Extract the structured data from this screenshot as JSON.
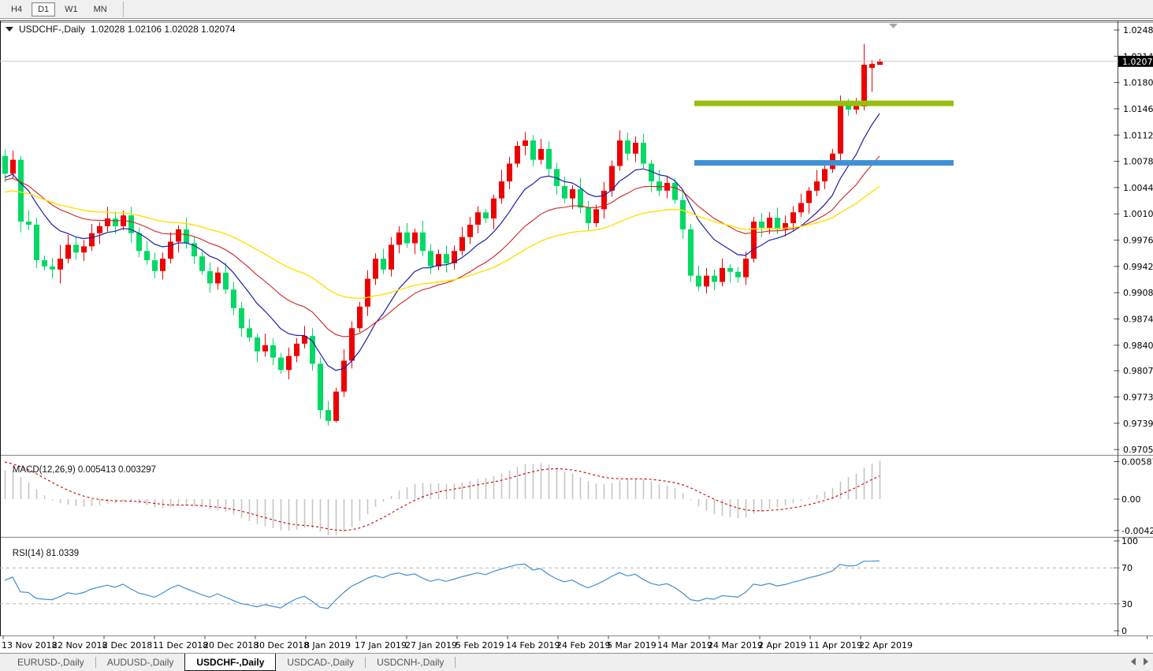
{
  "toolbar": {
    "buttons": [
      {
        "label": "H4",
        "active": false
      },
      {
        "label": "D1",
        "active": true
      },
      {
        "label": "W1",
        "active": false
      },
      {
        "label": "MN",
        "active": false
      }
    ]
  },
  "chart": {
    "title": {
      "symbol": "USDCHF-,Daily",
      "ohlc": "1.02028 1.02106 1.02028 1.02074"
    },
    "current_price": "1.02074",
    "macd": {
      "label": "MACD(12,26,9)",
      "values": "0.005413 0.003297"
    },
    "rsi": {
      "label": "RSI(14)",
      "value": "81.0339"
    }
  },
  "chart_data": {
    "type": "candlestick",
    "symbol": "USDCHF",
    "timeframe": "Daily",
    "price_axis_labels": [
      "1.02480",
      "1.02140",
      "1.01800",
      "1.01460",
      "1.01120",
      "1.00780",
      "1.00440",
      "1.00100",
      "0.99760",
      "0.99420",
      "0.99080",
      "0.98740",
      "0.98400",
      "0.98070",
      "0.97730",
      "0.97390",
      "0.97050"
    ],
    "date_labels": [
      "13 Nov 2018",
      "22 Nov 2018",
      "2 Dec 2018",
      "11 Dec 2018",
      "20 Dec 2018",
      "30 Dec 2018",
      "8 Jan 2019",
      "17 Jan 2019",
      "27 Jan 2019",
      "5 Feb 2019",
      "14 Feb 2019",
      "24 Feb 2019",
      "5 Mar 2019",
      "14 Mar 2019",
      "24 Mar 2019",
      "2 Apr 2019",
      "11 Apr 2019",
      "22 Apr 2019"
    ],
    "candles_ohlc": [
      [
        1.0085,
        1.0093,
        1.0051,
        1.0062
      ],
      [
        1.0062,
        1.0092,
        1.0056,
        1.008
      ],
      [
        1.008,
        1.0085,
        0.9986,
        1.0
      ],
      [
        1.0,
        1.0015,
        0.9989,
        0.9996
      ],
      [
        0.9996,
        1.0005,
        0.994,
        0.995
      ],
      [
        0.995,
        0.9956,
        0.9937,
        0.9942
      ],
      [
        0.9942,
        0.9953,
        0.9926,
        0.9938
      ],
      [
        0.9938,
        0.997,
        0.992,
        0.9952
      ],
      [
        0.9952,
        0.9983,
        0.9946,
        0.997
      ],
      [
        0.997,
        0.998,
        0.9951,
        0.996
      ],
      [
        0.996,
        0.9976,
        0.9949,
        0.9968
      ],
      [
        0.9968,
        0.9997,
        0.9962,
        0.9985
      ],
      [
        0.9985,
        0.9999,
        0.9971,
        0.9994
      ],
      [
        0.9994,
        1.0019,
        0.9987,
        1.0004
      ],
      [
        1.0004,
        1.0013,
        0.9984,
        0.9994
      ],
      [
        0.9994,
        1.0014,
        0.9989,
        1.0008
      ],
      [
        1.0008,
        1.0019,
        0.9973,
        0.9985
      ],
      [
        0.9985,
        0.9992,
        0.9954,
        0.9962
      ],
      [
        0.9962,
        0.9975,
        0.9944,
        0.995
      ],
      [
        0.995,
        0.996,
        0.9927,
        0.9936
      ],
      [
        0.9936,
        0.996,
        0.9925,
        0.9952
      ],
      [
        0.9952,
        0.9986,
        0.9946,
        0.9974
      ],
      [
        0.9974,
        0.9995,
        0.996,
        0.999
      ],
      [
        0.999,
        1.0005,
        0.9965,
        0.9972
      ],
      [
        0.9972,
        0.9981,
        0.9945,
        0.9955
      ],
      [
        0.9955,
        0.9961,
        0.9931,
        0.9936
      ],
      [
        0.9936,
        0.9947,
        0.9908,
        0.992
      ],
      [
        0.992,
        0.9941,
        0.9912,
        0.9934
      ],
      [
        0.9934,
        0.9947,
        0.9906,
        0.9912
      ],
      [
        0.9912,
        0.9922,
        0.9879,
        0.9888
      ],
      [
        0.9888,
        0.9896,
        0.9851,
        0.9862
      ],
      [
        0.9862,
        0.9874,
        0.9844,
        0.985
      ],
      [
        0.985,
        0.9855,
        0.9818,
        0.9832
      ],
      [
        0.9832,
        0.9855,
        0.9825,
        0.984
      ],
      [
        0.984,
        0.9849,
        0.9814,
        0.9824
      ],
      [
        0.9824,
        0.983,
        0.9803,
        0.9808
      ],
      [
        0.9808,
        0.9837,
        0.9796,
        0.9826
      ],
      [
        0.9826,
        0.9849,
        0.9818,
        0.9842
      ],
      [
        0.9842,
        0.9865,
        0.9836,
        0.9852
      ],
      [
        0.9852,
        0.9862,
        0.9807,
        0.9816
      ],
      [
        0.9816,
        0.9824,
        0.9745,
        0.9756
      ],
      [
        0.9756,
        0.9768,
        0.9736,
        0.9742
      ],
      [
        0.9742,
        0.9785,
        0.974,
        0.978
      ],
      [
        0.978,
        0.9835,
        0.9773,
        0.982
      ],
      [
        0.982,
        0.9871,
        0.981,
        0.9862
      ],
      [
        0.9862,
        0.9896,
        0.9857,
        0.989
      ],
      [
        0.989,
        0.9937,
        0.9878,
        0.9926
      ],
      [
        0.9926,
        0.9959,
        0.9918,
        0.9952
      ],
      [
        0.9952,
        0.9965,
        0.9932,
        0.9938
      ],
      [
        0.9938,
        0.998,
        0.9929,
        0.997
      ],
      [
        0.997,
        0.9994,
        0.9959,
        0.9986
      ],
      [
        0.9986,
        0.9998,
        0.9966,
        0.9972
      ],
      [
        0.9972,
        0.9991,
        0.9958,
        0.9986
      ],
      [
        0.9986,
        1.0001,
        0.9955,
        0.9962
      ],
      [
        0.9962,
        0.9971,
        0.9932,
        0.9942
      ],
      [
        0.9942,
        0.9964,
        0.9937,
        0.9958
      ],
      [
        0.9958,
        0.9969,
        0.9934,
        0.9946
      ],
      [
        0.9946,
        0.9969,
        0.9938,
        0.9962
      ],
      [
        0.9962,
        0.9993,
        0.9956,
        0.998
      ],
      [
        0.998,
        1.0006,
        0.9971,
        0.9996
      ],
      [
        0.9996,
        1.002,
        0.9985,
        1.0012
      ],
      [
        1.0012,
        1.0016,
        0.9998,
        1.0004
      ],
      [
        1.0004,
        1.0035,
        0.999,
        1.003
      ],
      [
        1.003,
        1.0067,
        1.0023,
        1.0052
      ],
      [
        1.0052,
        1.0084,
        1.0042,
        1.0075
      ],
      [
        1.0075,
        1.0104,
        1.007,
        1.0098
      ],
      [
        1.0098,
        1.0116,
        1.0086,
        1.0105
      ],
      [
        1.0105,
        1.0112,
        1.0072,
        1.008
      ],
      [
        1.008,
        1.0107,
        1.0074,
        1.0094
      ],
      [
        1.0094,
        1.0104,
        1.0059,
        1.0068
      ],
      [
        1.0068,
        1.0076,
        1.0035,
        1.0046
      ],
      [
        1.0046,
        1.0058,
        1.0024,
        1.003
      ],
      [
        1.003,
        1.0047,
        1.0016,
        1.0042
      ],
      [
        1.0042,
        1.0057,
        1.0011,
        1.0018
      ],
      [
        1.0018,
        1.0027,
        0.9988,
        0.9998
      ],
      [
        0.9998,
        1.0022,
        0.9993,
        1.0016
      ],
      [
        1.0016,
        1.0051,
        1.0004,
        1.004
      ],
      [
        1.004,
        1.0079,
        1.0032,
        1.0072
      ],
      [
        1.0072,
        1.0118,
        1.0066,
        1.0105
      ],
      [
        1.0105,
        1.0115,
        1.0079,
        1.0088
      ],
      [
        1.0088,
        1.011,
        1.0077,
        1.0102
      ],
      [
        1.0102,
        1.0114,
        1.0069,
        1.0075
      ],
      [
        1.0075,
        1.008,
        1.0038,
        1.0052
      ],
      [
        1.0052,
        1.0067,
        1.0033,
        1.004
      ],
      [
        1.004,
        1.0059,
        1.003,
        1.005
      ],
      [
        1.005,
        1.0056,
        1.0023,
        1.0028
      ],
      [
        1.0028,
        1.0039,
        0.9978,
        0.999
      ],
      [
        0.999,
        0.9997,
        0.9922,
        0.993
      ],
      [
        0.993,
        0.9943,
        0.991,
        0.9916
      ],
      [
        0.9916,
        0.994,
        0.9907,
        0.993
      ],
      [
        0.993,
        0.9938,
        0.9911,
        0.9922
      ],
      [
        0.9922,
        0.9952,
        0.9916,
        0.994
      ],
      [
        0.994,
        0.9945,
        0.9921,
        0.9935
      ],
      [
        0.9935,
        0.9941,
        0.9921,
        0.9928
      ],
      [
        0.9928,
        0.9961,
        0.9918,
        0.9952
      ],
      [
        0.9952,
        1.0006,
        0.9947,
        1.0
      ],
      [
        1.0,
        1.0011,
        0.998,
        0.9992
      ],
      [
        0.9992,
        1.0012,
        0.9984,
        1.0005
      ],
      [
        1.0005,
        1.0018,
        0.9984,
        0.999
      ],
      [
        0.999,
        1.0008,
        0.9981,
        0.9998
      ],
      [
        0.9998,
        1.002,
        0.9987,
        1.0012
      ],
      [
        1.0012,
        1.0036,
        1.0006,
        1.0024
      ],
      [
        1.0024,
        1.0045,
        1.001,
        1.004
      ],
      [
        1.004,
        1.0067,
        1.0033,
        1.0052
      ],
      [
        1.0052,
        1.0077,
        1.0042,
        1.0068
      ],
      [
        1.0068,
        1.0094,
        1.0063,
        1.0088
      ],
      [
        1.0088,
        1.0163,
        1.0076,
        1.0152
      ],
      [
        1.0152,
        1.0159,
        1.0137,
        1.0145
      ],
      [
        1.0145,
        1.016,
        1.0139,
        1.0151
      ],
      [
        1.0149,
        1.023,
        1.0144,
        1.0203
      ],
      [
        1.0199,
        1.0209,
        1.0168,
        1.0204
      ],
      [
        1.02028,
        1.02106,
        1.02028,
        1.02074
      ]
    ],
    "moving_averages": [
      {
        "name": "fast-ma",
        "color": "#1d1da8"
      },
      {
        "name": "medium-ma",
        "color": "#cc2222"
      },
      {
        "name": "slow-ma",
        "color": "#ffe000"
      }
    ],
    "horizontal_rays": [
      {
        "price": 1.0153,
        "color": "#97bf0d"
      },
      {
        "price": 1.0076,
        "color": "#3e91d5"
      }
    ],
    "macd": {
      "fast": 12,
      "slow": 26,
      "signal": 9,
      "axis_labels": [
        "0.005873",
        "0.00",
        "-0.004238"
      ],
      "histogram_color": "#c4c4c4",
      "signal_color": "#cc0000"
    },
    "rsi": {
      "period": 14,
      "axis_labels": [
        "100",
        "70",
        "30",
        "0"
      ],
      "levels": [
        70,
        30
      ],
      "line_color": "#3f8ed0"
    },
    "colors": {
      "bull": "#ee0000",
      "bear": "#00d964",
      "background": "#ffffff",
      "current_price_line": "#c9c9c9",
      "current_price_label_bg": "#000000",
      "current_price_label_text": "#ffffff"
    }
  },
  "tabs": [
    {
      "label": "EURUSD-,Daily",
      "active": false
    },
    {
      "label": "AUDUSD-,Daily",
      "active": false
    },
    {
      "label": "USDCHF-,Daily",
      "active": true
    },
    {
      "label": "USDCAD-,Daily",
      "active": false
    },
    {
      "label": "USDCNH-,Daily",
      "active": false
    }
  ]
}
